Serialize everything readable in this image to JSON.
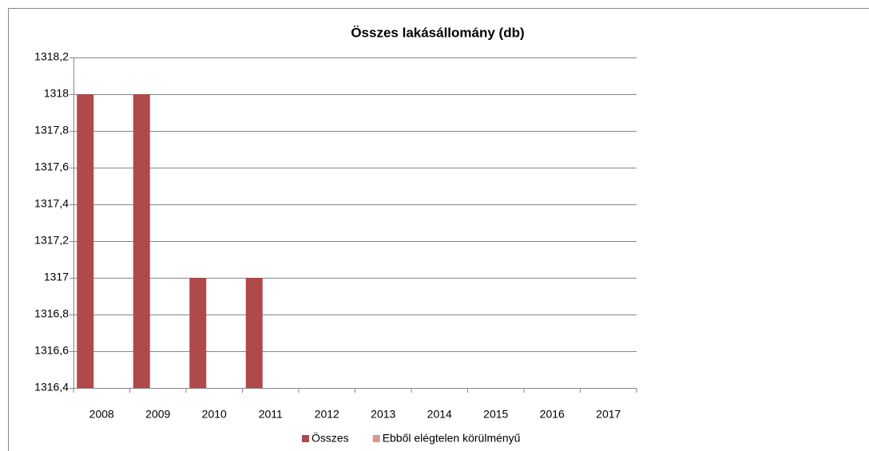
{
  "chart_data": {
    "type": "bar",
    "title": "Összes lakásállomány (db)",
    "categories": [
      "2008",
      "2009",
      "2010",
      "2011",
      "2012",
      "2013",
      "2014",
      "2015",
      "2016",
      "2017"
    ],
    "series": [
      {
        "name": "Összes",
        "color": "#b0494a",
        "values": [
          1318,
          1318,
          1317,
          1317,
          null,
          null,
          null,
          null,
          null,
          null
        ]
      },
      {
        "name": "Ebből elégtelen körülményű",
        "color": "#d99796",
        "values": [
          null,
          null,
          null,
          null,
          null,
          null,
          null,
          null,
          null,
          null
        ]
      }
    ],
    "ylim": [
      1316.4,
      1318.2
    ],
    "yticks": [
      {
        "value": 1316.4,
        "label": "1316,4"
      },
      {
        "value": 1316.6,
        "label": "1316,6"
      },
      {
        "value": 1316.8,
        "label": "1316,8"
      },
      1317,
      {
        "value": 1317.2,
        "label": "1317,2"
      },
      {
        "value": 1317.4,
        "label": "1317,4"
      },
      {
        "value": 1317.6,
        "label": "1317,6"
      },
      {
        "value": 1317.8,
        "label": "1317,8"
      },
      1318,
      {
        "value": 1318.2,
        "label": "1318,2"
      }
    ],
    "grid": true,
    "legend": "bottom"
  }
}
